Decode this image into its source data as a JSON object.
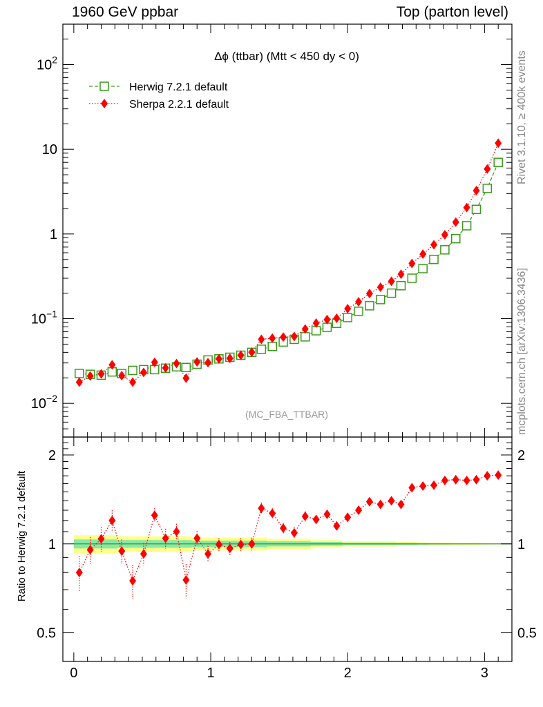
{
  "header": {
    "left": "1960 GeV ppbar",
    "right": "Top (parton level)"
  },
  "side_labels": {
    "rivet": "Rivet 3.1.10, ≥ 400k events",
    "mcplots": "mcplots.cern.ch [arXiv:1306.3436]"
  },
  "colors": {
    "herwig": "#3a9a1a",
    "sherpa": "#ff0000",
    "band_yellow": "#ffff88",
    "band_green": "#88e8a8"
  },
  "chart_data": [
    {
      "type": "scatter",
      "panel": "main",
      "title": "Δϕ (ttbar) (Mtt < 450 dy < 0)",
      "watermark": "(MC_FBA_TTBAR)",
      "yscale": "log",
      "xlim": [
        -0.08,
        3.2
      ],
      "ylim": [
        0.004,
        300
      ],
      "xticks": [
        0,
        1,
        2,
        3
      ],
      "yticks": [
        {
          "value": 0.01,
          "base": "10",
          "exp": "−2"
        },
        {
          "value": 0.1,
          "base": "10",
          "exp": "−1"
        },
        {
          "value": 1,
          "base": "1",
          "exp": ""
        },
        {
          "value": 10,
          "base": "10",
          "exp": ""
        },
        {
          "value": 100,
          "base": "10",
          "exp": "2"
        }
      ],
      "legend_position": "top-left",
      "x": [
        0.04,
        0.12,
        0.2,
        0.28,
        0.35,
        0.43,
        0.51,
        0.59,
        0.67,
        0.75,
        0.82,
        0.9,
        0.98,
        1.06,
        1.14,
        1.22,
        1.3,
        1.37,
        1.45,
        1.53,
        1.61,
        1.69,
        1.77,
        1.85,
        1.92,
        2.0,
        2.08,
        2.16,
        2.24,
        2.32,
        2.39,
        2.47,
        2.55,
        2.63,
        2.71,
        2.79,
        2.87,
        2.94,
        3.02,
        3.1
      ],
      "series": [
        {
          "name": "Herwig 7.2.1 default",
          "marker": "open-square",
          "line": "dashed",
          "values": [
            0.0225,
            0.022,
            0.0215,
            0.0235,
            0.0225,
            0.0245,
            0.025,
            0.025,
            0.026,
            0.027,
            0.0265,
            0.029,
            0.0325,
            0.0335,
            0.035,
            0.037,
            0.04,
            0.0435,
            0.047,
            0.053,
            0.057,
            0.061,
            0.072,
            0.079,
            0.088,
            0.103,
            0.122,
            0.142,
            0.168,
            0.2,
            0.245,
            0.3,
            0.39,
            0.5,
            0.65,
            0.88,
            1.25,
            1.95,
            3.45,
            7.0
          ]
        },
        {
          "name": "Sherpa 2.2.1 default",
          "marker": "filled-diamond",
          "line": "dotted",
          "values": [
            0.0178,
            0.021,
            0.0223,
            0.0285,
            0.0212,
            0.0178,
            0.0232,
            0.0305,
            0.0262,
            0.0295,
            0.0198,
            0.0308,
            0.0302,
            0.0335,
            0.034,
            0.037,
            0.0402,
            0.057,
            0.0588,
            0.0605,
            0.0615,
            0.0755,
            0.0885,
            0.0975,
            0.101,
            0.131,
            0.158,
            0.198,
            0.235,
            0.276,
            0.335,
            0.448,
            0.578,
            0.745,
            0.978,
            1.38,
            2.05,
            3.25,
            5.85,
            11.8
          ]
        }
      ]
    },
    {
      "type": "scatter",
      "panel": "ratio",
      "ylabel": "Ratio to Herwig 7.2.1 default",
      "xlim": [
        -0.08,
        3.2
      ],
      "ylim": [
        0.4,
        2.3
      ],
      "yscale": "log",
      "xticks": [
        0,
        1,
        2,
        3
      ],
      "yticks": [
        0.5,
        1,
        2
      ],
      "x": [
        0.04,
        0.12,
        0.2,
        0.28,
        0.35,
        0.43,
        0.51,
        0.59,
        0.67,
        0.75,
        0.82,
        0.9,
        0.98,
        1.06,
        1.14,
        1.22,
        1.3,
        1.37,
        1.45,
        1.53,
        1.61,
        1.69,
        1.77,
        1.85,
        1.92,
        2.0,
        2.08,
        2.16,
        2.24,
        2.32,
        2.39,
        2.47,
        2.55,
        2.63,
        2.71,
        2.79,
        2.87,
        2.94,
        3.02,
        3.1
      ],
      "series": [
        {
          "name": "Sherpa 2.2.1 default",
          "values": [
            0.8,
            0.955,
            1.04,
            1.2,
            0.945,
            0.75,
            0.925,
            1.25,
            1.045,
            1.1,
            0.755,
            1.045,
            0.925,
            0.995,
            0.965,
            0.995,
            1.0,
            1.32,
            1.27,
            1.13,
            1.09,
            1.24,
            1.21,
            1.26,
            1.15,
            1.23,
            1.3,
            1.39,
            1.36,
            1.4,
            1.36,
            1.55,
            1.57,
            1.58,
            1.64,
            1.65,
            1.64,
            1.65,
            1.7,
            1.71
          ],
          "errors": [
            0.11,
            0.1,
            0.1,
            0.1,
            0.09,
            0.1,
            0.08,
            0.07,
            0.08,
            0.07,
            0.1,
            0.06,
            0.06,
            0.05,
            0.05,
            0.05,
            0.05,
            0.06,
            0.05,
            0.05,
            0.05,
            0.05,
            0.04,
            0.04,
            0.04,
            0.04,
            0.04,
            0.04,
            0.03,
            0.03,
            0.03,
            0.03,
            0.03,
            0.03,
            0.03,
            0.03,
            0.02,
            0.02,
            0.02,
            0.02
          ]
        }
      ],
      "band": {
        "yellow_halfwidth": [
          0.07,
          0.07,
          0.07,
          0.07,
          0.06,
          0.06,
          0.06,
          0.06,
          0.06,
          0.06,
          0.06,
          0.05,
          0.05,
          0.05,
          0.05,
          0.05,
          0.05,
          0.05,
          0.04,
          0.04,
          0.04,
          0.04,
          0.03,
          0.03,
          0.03,
          0.02,
          0.02,
          0.02,
          0.02,
          0.02,
          0.015,
          0.015,
          0.012,
          0.01,
          0.01,
          0.008,
          0.007,
          0.006,
          0.005,
          0.004
        ],
        "green_halfwidth": [
          0.035,
          0.035,
          0.035,
          0.035,
          0.03,
          0.03,
          0.03,
          0.03,
          0.03,
          0.03,
          0.03,
          0.025,
          0.025,
          0.025,
          0.025,
          0.025,
          0.025,
          0.025,
          0.02,
          0.02,
          0.02,
          0.02,
          0.015,
          0.015,
          0.015,
          0.01,
          0.01,
          0.01,
          0.01,
          0.01,
          0.008,
          0.008,
          0.006,
          0.005,
          0.005,
          0.004,
          0.004,
          0.003,
          0.003,
          0.002
        ]
      }
    }
  ]
}
